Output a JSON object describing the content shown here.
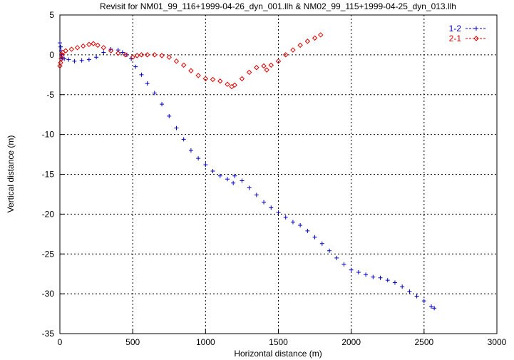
{
  "chart_data": {
    "type": "scatter",
    "title": "Revisit for NM01_99_116+1999-04-26_dyn_001.llh & NM02_99_115+1999-04-25_dyn_013.llh",
    "xlabel": "Horizontal distance (m)",
    "ylabel": "Vertical distance (m)",
    "xlim": [
      0,
      3000
    ],
    "ylim": [
      -35,
      5
    ],
    "xticks": [
      0,
      500,
      1000,
      1500,
      2000,
      2500,
      3000
    ],
    "yticks": [
      5,
      0,
      -5,
      -10,
      -15,
      -20,
      -25,
      -30,
      -35
    ],
    "grid": true,
    "legend_position": "top-right",
    "series": [
      {
        "name": "1-2",
        "color": "#0000c8",
        "marker": "plus",
        "points": [
          [
            0,
            1.5
          ],
          [
            5,
            1.0
          ],
          [
            8,
            0.5
          ],
          [
            10,
            0
          ],
          [
            12,
            -0.3
          ],
          [
            15,
            -0.5
          ],
          [
            30,
            -0.5
          ],
          [
            60,
            -0.6
          ],
          [
            100,
            -0.8
          ],
          [
            150,
            -0.7
          ],
          [
            200,
            -0.6
          ],
          [
            250,
            -0.3
          ],
          [
            300,
            0.3
          ],
          [
            350,
            0.7
          ],
          [
            400,
            0.6
          ],
          [
            430,
            0.3
          ],
          [
            460,
            0
          ],
          [
            490,
            -0.5
          ],
          [
            520,
            -1.5
          ],
          [
            560,
            -2.5
          ],
          [
            600,
            -3.6
          ],
          [
            650,
            -4.8
          ],
          [
            700,
            -6.2
          ],
          [
            750,
            -7.7
          ],
          [
            800,
            -9.2
          ],
          [
            850,
            -10.6
          ],
          [
            900,
            -12.0
          ],
          [
            950,
            -13.0
          ],
          [
            1000,
            -13.8
          ],
          [
            1050,
            -14.6
          ],
          [
            1100,
            -15.2
          ],
          [
            1150,
            -15.6
          ],
          [
            1190,
            -16.1
          ],
          [
            1200,
            -15.2
          ],
          [
            1250,
            -15.8
          ],
          [
            1300,
            -16.7
          ],
          [
            1350,
            -17.6
          ],
          [
            1400,
            -18.5
          ],
          [
            1450,
            -19.2
          ],
          [
            1500,
            -19.8
          ],
          [
            1550,
            -20.4
          ],
          [
            1600,
            -21.0
          ],
          [
            1650,
            -21.4
          ],
          [
            1700,
            -22.1
          ],
          [
            1750,
            -22.9
          ],
          [
            1800,
            -23.7
          ],
          [
            1850,
            -24.6
          ],
          [
            1900,
            -25.5
          ],
          [
            1950,
            -26.3
          ],
          [
            2000,
            -27.0
          ],
          [
            2050,
            -27.3
          ],
          [
            2100,
            -27.6
          ],
          [
            2150,
            -27.9
          ],
          [
            2200,
            -28.0
          ],
          [
            2250,
            -28.3
          ],
          [
            2300,
            -28.6
          ],
          [
            2350,
            -29.1
          ],
          [
            2400,
            -29.7
          ],
          [
            2450,
            -30.3
          ],
          [
            2500,
            -30.9
          ],
          [
            2550,
            -31.6
          ],
          [
            2570,
            -31.8
          ]
        ]
      },
      {
        "name": "2-1",
        "color": "#e00000",
        "marker": "diamond",
        "points": [
          [
            0,
            -1.4
          ],
          [
            5,
            -1.0
          ],
          [
            10,
            -0.5
          ],
          [
            15,
            0
          ],
          [
            20,
            0.3
          ],
          [
            40,
            0.5
          ],
          [
            80,
            0.7
          ],
          [
            120,
            0.9
          ],
          [
            160,
            1.1
          ],
          [
            200,
            1.3
          ],
          [
            230,
            1.4
          ],
          [
            260,
            1.2
          ],
          [
            300,
            0.9
          ],
          [
            350,
            0.5
          ],
          [
            400,
            0.2
          ],
          [
            450,
            0
          ],
          [
            500,
            -0.3
          ],
          [
            530,
            -0.1
          ],
          [
            560,
            0
          ],
          [
            600,
            0
          ],
          [
            650,
            0
          ],
          [
            700,
            -0.1
          ],
          [
            750,
            -0.3
          ],
          [
            800,
            -0.8
          ],
          [
            850,
            -1.3
          ],
          [
            900,
            -2.0
          ],
          [
            950,
            -2.6
          ],
          [
            1000,
            -3.0
          ],
          [
            1050,
            -3.1
          ],
          [
            1100,
            -3.3
          ],
          [
            1150,
            -3.7
          ],
          [
            1180,
            -4.0
          ],
          [
            1200,
            -3.8
          ],
          [
            1250,
            -3.0
          ],
          [
            1300,
            -2.2
          ],
          [
            1350,
            -1.6
          ],
          [
            1400,
            -1.4
          ],
          [
            1420,
            -1.9
          ],
          [
            1450,
            -1.3
          ],
          [
            1500,
            -0.8
          ],
          [
            1550,
            0
          ],
          [
            1600,
            0.6
          ],
          [
            1650,
            1.2
          ],
          [
            1700,
            1.7
          ],
          [
            1750,
            2.1
          ],
          [
            1790,
            2.5
          ]
        ]
      }
    ]
  }
}
